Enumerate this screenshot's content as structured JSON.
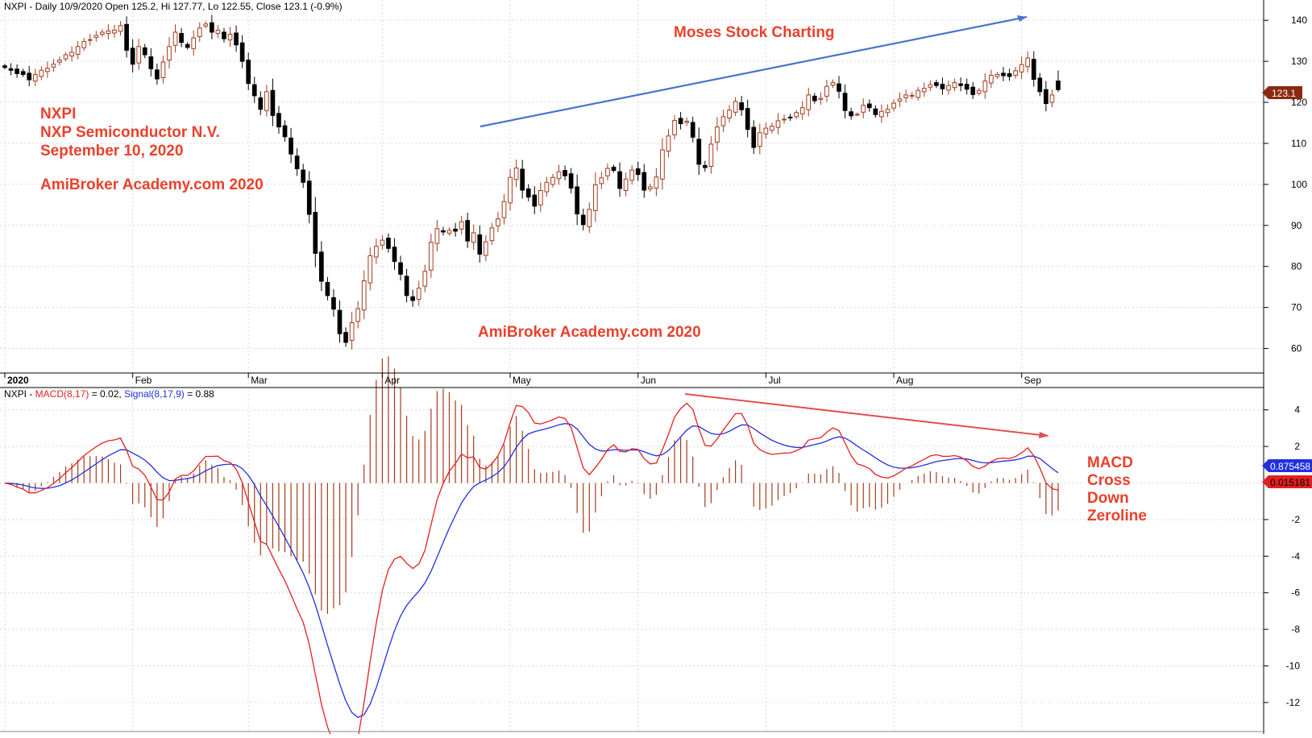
{
  "header": {
    "price": "NXPI - Daily 10/9/2020 Open 125.2, Hi 127.77, Lo 122.55, Close 123.1 (-0.9%)",
    "macd_prefix": "NXPI - ",
    "macd_name": "MACD(8,17)",
    "macd_value": " = 0.02, ",
    "signal_name": "Signal(8,17,9)",
    "signal_value": " = 0.88"
  },
  "annotations": {
    "symbol": "NXPI",
    "company": "NXP Semiconductor N.V.",
    "date": "September 10, 2020",
    "watermark_left": "AmiBroker Academy.com 2020",
    "watermark_center": "AmiBroker Academy.com  2020",
    "moses": "Moses Stock Charting",
    "macd_note": [
      "MACD",
      "Cross",
      "Down",
      "Zeroline"
    ]
  },
  "badges": {
    "last_close": "123.1",
    "signal_last": "0.875458",
    "macd_last": "0.015181"
  },
  "colors": {
    "up": "#a33b1f",
    "down": "#000000",
    "macd": "#e32020",
    "signal": "#2030e0",
    "hist": "#a33b1f",
    "annotation": "#e8412c",
    "trend_up": "#4a72d0",
    "trend_down": "#e05050"
  },
  "chart_data": [
    {
      "type": "candlestick",
      "title": "NXPI - Daily 10/9/2020 Open 125.2, Hi 127.77, Lo 122.55, Close 123.1 (-0.9%)",
      "x_labels": [
        "2020",
        "Feb",
        "Mar",
        "Apr",
        "May",
        "Jun",
        "Jul",
        "Aug",
        "Sep"
      ],
      "x_label_day_index": [
        0,
        21,
        40,
        62,
        83,
        104,
        125,
        146,
        167
      ],
      "y_ticks": [
        60,
        70,
        80,
        90,
        100,
        110,
        120,
        130,
        140
      ],
      "ylim": [
        55,
        142
      ],
      "y_side": "right",
      "closes": [
        128.5,
        127.8,
        127.0,
        126.8,
        125.5,
        126.8,
        127.8,
        128.3,
        129.3,
        130.3,
        131.6,
        132.2,
        133.6,
        134.8,
        135.3,
        136.3,
        137.1,
        137.4,
        137.6,
        138.7,
        132.7,
        129.3,
        133.6,
        131.6,
        128.2,
        125.7,
        129.8,
        133.6,
        137.1,
        134.6,
        133.4,
        135.7,
        138.1,
        139.1,
        137.1,
        137.6,
        135.5,
        136.6,
        134.0,
        130.0,
        124.6,
        121.6,
        118.3,
        122.6,
        116.8,
        114.0,
        111.6,
        107.4,
        103.8,
        100.5,
        92.7,
        83.2,
        76.4,
        72.9,
        69.6,
        63.6,
        61.5,
        66.3,
        69.7,
        76.5,
        82.6,
        84.9,
        86.4,
        84.4,
        81.2,
        78.1,
        72.9,
        71.7,
        74.7,
        78.8,
        85.9,
        89.2,
        88.4,
        88.8,
        88.6,
        90.9,
        86.2,
        88.2,
        83.0,
        86.0,
        89.4,
        91.6,
        95.8,
        101.7,
        104.0,
        98.6,
        96.9,
        94.7,
        98.5,
        100.5,
        101.7,
        103.1,
        102.1,
        99.1,
        92.8,
        90.2,
        93.9,
        99.9,
        101.6,
        103.9,
        103.4,
        99.0,
        101.3,
        103.5,
        102.4,
        98.6,
        99.4,
        101.8,
        108.4,
        111.8,
        115.6,
        114.8,
        115.4,
        111.5,
        104.9,
        104.1,
        109.8,
        114.0,
        116.5,
        118.1,
        120.2,
        118.2,
        113.4,
        109.0,
        112.6,
        113.7,
        114.2,
        115.5,
        115.9,
        116.2,
        117.5,
        118.7,
        121.8,
        120.4,
        121.0,
        123.9,
        124.8,
        122.7,
        118.0,
        116.7,
        117.1,
        119.3,
        118.7,
        117.0,
        117.8,
        118.3,
        119.8,
        120.8,
        121.8,
        121.7,
        122.9,
        123.4,
        124.3,
        124.1,
        123.3,
        124.1,
        124.8,
        124.1,
        123.2,
        121.9,
        122.9,
        125.2,
        126.6,
        126.8,
        126.5,
        126.3,
        127.7,
        129.2,
        130.8,
        125.6,
        122.6,
        119.7,
        121.8,
        123.1
      ],
      "open": 125.2,
      "high": 127.77,
      "low": 122.55,
      "close": 123.1
    },
    {
      "type": "macd",
      "title": "NXPI - MACD(8,17) = 0.02, Signal(8,17,9) = 0.88",
      "series": [
        {
          "name": "MACD(8,17)",
          "value": 0.02
        },
        {
          "name": "Signal(8,17,9)",
          "value": 0.88
        }
      ],
      "histogram": true,
      "y_ticks": [
        4,
        2,
        0,
        -2,
        -4,
        -6,
        -8,
        -10,
        -12
      ],
      "ylim": [
        -13.5,
        5
      ],
      "y_side": "right"
    }
  ]
}
